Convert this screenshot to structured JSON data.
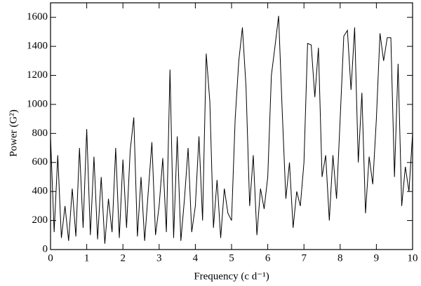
{
  "chart_data": {
    "type": "line",
    "x_label": "Frequency (c d⁻¹)",
    "y_label": "Power (G²)",
    "x": [
      0.0,
      0.1,
      0.2,
      0.3,
      0.4,
      0.5,
      0.6,
      0.7,
      0.8,
      0.9,
      1.0,
      1.1,
      1.2,
      1.3,
      1.4,
      1.5,
      1.6,
      1.7,
      1.8,
      1.9,
      2.0,
      2.1,
      2.2,
      2.3,
      2.4,
      2.5,
      2.6,
      2.7,
      2.8,
      2.9,
      3.0,
      3.1,
      3.2,
      3.3,
      3.4,
      3.5,
      3.6,
      3.7,
      3.8,
      3.9,
      4.0,
      4.1,
      4.2,
      4.3,
      4.4,
      4.5,
      4.6,
      4.7,
      4.8,
      4.9,
      5.0,
      5.1,
      5.2,
      5.3,
      5.4,
      5.5,
      5.6,
      5.7,
      5.8,
      5.9,
      6.0,
      6.1,
      6.2,
      6.3,
      6.4,
      6.5,
      6.6,
      6.7,
      6.8,
      6.9,
      7.0,
      7.1,
      7.2,
      7.3,
      7.4,
      7.5,
      7.6,
      7.7,
      7.8,
      7.9,
      8.0,
      8.1,
      8.2,
      8.3,
      8.4,
      8.5,
      8.6,
      8.7,
      8.8,
      8.9,
      9.0,
      9.1,
      9.2,
      9.3,
      9.4,
      9.5,
      9.6,
      9.7,
      9.8,
      9.9,
      10.0
    ],
    "series": [
      {
        "color": "#000000",
        "values": [
          780,
          120,
          650,
          80,
          300,
          60,
          420,
          90,
          700,
          150,
          830,
          100,
          640,
          70,
          500,
          40,
          350,
          120,
          700,
          80,
          620,
          150,
          680,
          910,
          90,
          500,
          60,
          400,
          740,
          100,
          300,
          630,
          120,
          1240,
          80,
          780,
          60,
          350,
          700,
          120,
          300,
          780,
          200,
          1350,
          1020,
          150,
          480,
          80,
          420,
          250,
          200,
          900,
          1300,
          1530,
          1120,
          300,
          650,
          100,
          420,
          280,
          500,
          1200,
          1400,
          1610,
          950,
          350,
          600,
          150,
          400,
          300,
          600,
          1420,
          1410,
          1050,
          1390,
          500,
          650,
          200,
          650,
          350,
          900,
          1470,
          1510,
          1100,
          1530,
          600,
          1080,
          250,
          640,
          450,
          900,
          1490,
          1300,
          1460,
          1460,
          500,
          1280,
          300,
          570,
          400,
          800
        ]
      }
    ],
    "xlim": [
      0,
      10
    ],
    "ylim": [
      0,
      1700
    ],
    "xticks": [
      0,
      1,
      2,
      3,
      4,
      5,
      6,
      7,
      8,
      9,
      10
    ],
    "yticks": [
      0,
      200,
      400,
      600,
      800,
      1000,
      1200,
      1400,
      1600
    ]
  }
}
